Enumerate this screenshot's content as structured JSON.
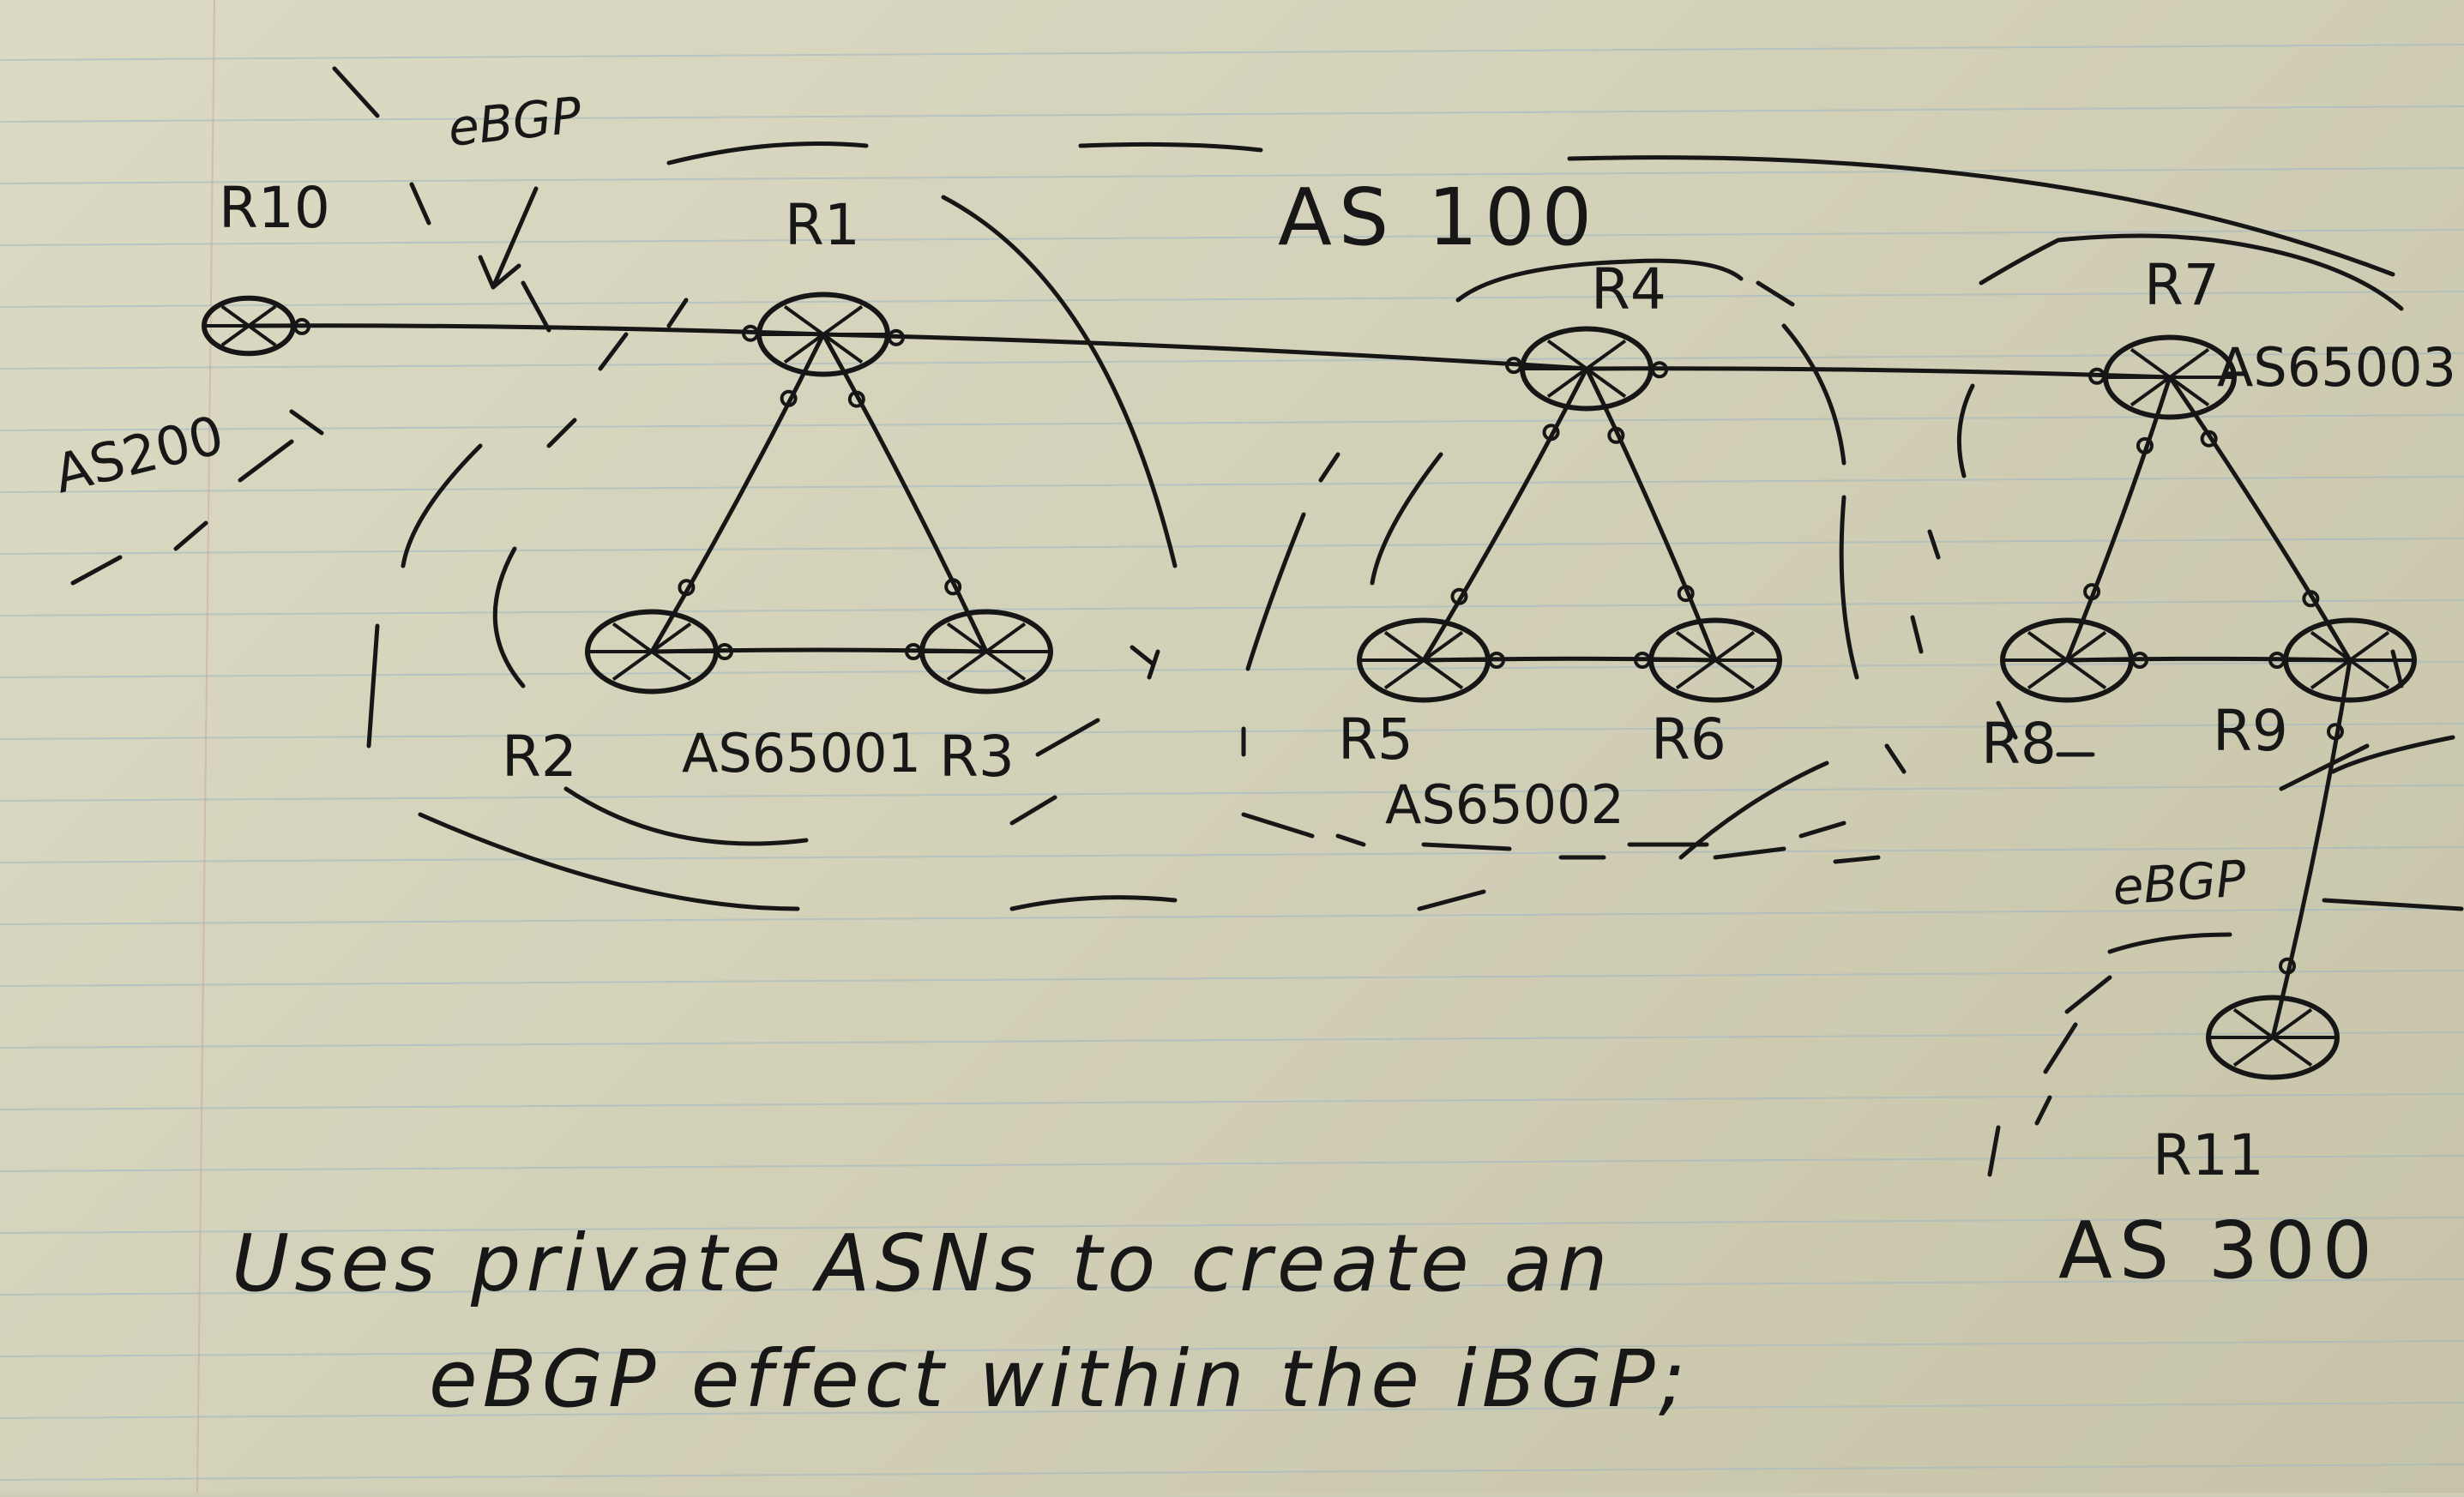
{
  "routers": {
    "R10": {
      "label": "R10"
    },
    "R1": {
      "label": "R1"
    },
    "R2": {
      "label": "R2"
    },
    "R3": {
      "label": "R3"
    },
    "R4": {
      "label": "R4"
    },
    "R5": {
      "label": "R5"
    },
    "R6": {
      "label": "R6"
    },
    "R7": {
      "label": "R7"
    },
    "R8": {
      "label": "R8"
    },
    "R9": {
      "label": "R9"
    },
    "R11": {
      "label": "R11"
    }
  },
  "autonomous_systems": {
    "as100": "AS 100",
    "as200": "AS200",
    "as65001": "AS65001",
    "as65002": "AS65002",
    "as65003": "AS65003",
    "as300": "AS 300"
  },
  "protocols": {
    "ebgp_left": "eBGP",
    "ebgp_right": "eBGP"
  },
  "links": [
    [
      "R10",
      "R1"
    ],
    [
      "R1",
      "R2"
    ],
    [
      "R1",
      "R3"
    ],
    [
      "R2",
      "R3"
    ],
    [
      "R1",
      "R4"
    ],
    [
      "R4",
      "R5"
    ],
    [
      "R4",
      "R6"
    ],
    [
      "R5",
      "R6"
    ],
    [
      "R4",
      "R7"
    ],
    [
      "R7",
      "R8"
    ],
    [
      "R7",
      "R9"
    ],
    [
      "R8",
      "R9"
    ],
    [
      "R9",
      "R11"
    ]
  ],
  "note": {
    "line1": "Uses private ASNs to create an",
    "line2": "eBGP effect within the iBGP;"
  },
  "colors": {
    "ink": "#161616",
    "paper": "#d7d5bd",
    "ruling": "#9fb6c4"
  }
}
